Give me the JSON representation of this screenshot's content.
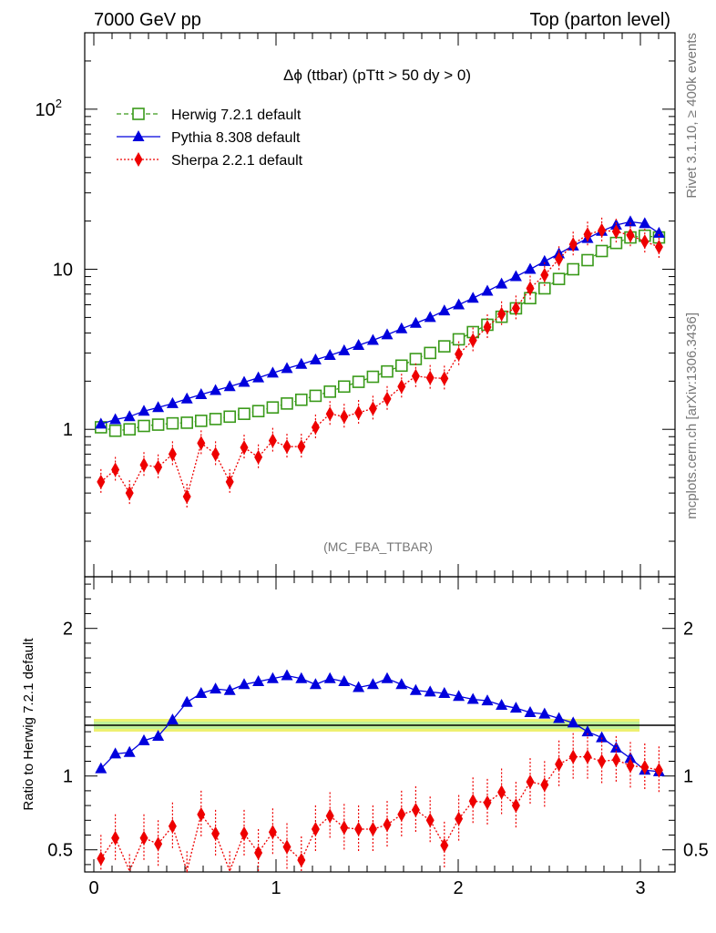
{
  "header": {
    "left": "7000 GeV pp",
    "right": "Top (parton level)"
  },
  "side_labels": {
    "rivet": "Rivet 3.1.10, ≥ 400k events",
    "mcplots": "mcplots.cern.ch [arXiv:1306.3436]"
  },
  "plot_title": "Δϕ (ttbar) (pTtt > 50 dy > 0)",
  "analysis_id": "(MC_FBA_TTBAR)",
  "ratio_ylabel": "Ratio to Herwig 7.2.1 default",
  "colors": {
    "herwig": "#3a9a1a",
    "pythia": "#0000dd",
    "sherpa": "#ee0000",
    "band": "#eef070",
    "band_inner": "#bff09a"
  },
  "chart_data": [
    {
      "type": "line",
      "panel": "main",
      "yscale": "log",
      "ylim": [
        0.12,
        300
      ],
      "xlim": [
        -0.05,
        3.19
      ],
      "xticks": [
        0,
        1,
        2,
        3
      ],
      "ytick_labels": [
        {
          "value": 1,
          "label": "1"
        },
        {
          "value": 10,
          "label": "10"
        },
        {
          "value": 100,
          "label": "10",
          "sup": "2"
        }
      ],
      "legend_position": "top-left",
      "x": [
        0.039,
        0.118,
        0.196,
        0.275,
        0.353,
        0.432,
        0.511,
        0.589,
        0.668,
        0.746,
        0.825,
        0.903,
        0.982,
        1.06,
        1.139,
        1.217,
        1.296,
        1.374,
        1.453,
        1.532,
        1.61,
        1.689,
        1.767,
        1.846,
        1.924,
        2.003,
        2.081,
        2.16,
        2.238,
        2.317,
        2.395,
        2.474,
        2.553,
        2.631,
        2.71,
        2.788,
        2.867,
        2.945,
        3.024,
        3.102
      ],
      "series": [
        {
          "name": "Herwig 7.2.1 default",
          "marker": "open-square",
          "linestyle": "dashed",
          "values": [
            1.03,
            0.98,
            1.0,
            1.05,
            1.07,
            1.09,
            1.1,
            1.13,
            1.16,
            1.2,
            1.25,
            1.3,
            1.37,
            1.45,
            1.53,
            1.62,
            1.72,
            1.85,
            1.98,
            2.13,
            2.3,
            2.5,
            2.75,
            3.0,
            3.3,
            3.65,
            4.05,
            4.5,
            5.05,
            5.7,
            6.6,
            7.6,
            8.7,
            10.0,
            11.4,
            13.0,
            14.6,
            15.8,
            16.2,
            15.8
          ]
        },
        {
          "name": "Pythia 8.308 default",
          "marker": "filled-triangle",
          "linestyle": "solid",
          "values": [
            1.08,
            1.15,
            1.2,
            1.3,
            1.37,
            1.45,
            1.55,
            1.65,
            1.75,
            1.85,
            1.97,
            2.1,
            2.25,
            2.4,
            2.55,
            2.72,
            2.9,
            3.1,
            3.35,
            3.6,
            3.9,
            4.25,
            4.6,
            5.0,
            5.5,
            6.0,
            6.6,
            7.3,
            8.1,
            9.0,
            10.0,
            11.2,
            12.5,
            14.0,
            15.6,
            17.3,
            18.9,
            19.8,
            19.3,
            16.8
          ]
        },
        {
          "name": "Sherpa 2.2.1 default",
          "marker": "filled-diamond",
          "linestyle": "dotted",
          "values": [
            0.47,
            0.56,
            0.4,
            0.6,
            0.58,
            0.7,
            0.38,
            0.82,
            0.7,
            0.47,
            0.77,
            0.67,
            0.85,
            0.78,
            0.78,
            1.03,
            1.25,
            1.2,
            1.27,
            1.35,
            1.55,
            1.85,
            2.15,
            2.1,
            2.08,
            2.95,
            3.6,
            4.35,
            5.25,
            5.7,
            7.6,
            9.2,
            11.6,
            14.3,
            16.5,
            17.5,
            17.2,
            16.3,
            14.9,
            13.8
          ]
        }
      ]
    },
    {
      "type": "line",
      "panel": "ratio",
      "ylabel": "Ratio to Herwig 7.2.1 default",
      "ylim": [
        0.35,
        2.35
      ],
      "xlim": [
        -0.05,
        3.19
      ],
      "xticks": [
        0,
        1,
        2,
        3
      ],
      "yticks": [
        0.5,
        1,
        2
      ],
      "x": [
        0.039,
        0.118,
        0.196,
        0.275,
        0.353,
        0.432,
        0.511,
        0.589,
        0.668,
        0.746,
        0.825,
        0.903,
        0.982,
        1.06,
        1.139,
        1.217,
        1.296,
        1.374,
        1.453,
        1.532,
        1.61,
        1.689,
        1.767,
        1.846,
        1.924,
        2.003,
        2.081,
        2.16,
        2.238,
        2.317,
        2.395,
        2.474,
        2.553,
        2.631,
        2.71,
        2.788,
        2.867,
        2.945,
        3.024,
        3.102
      ],
      "series": [
        {
          "name": "Pythia 8.308 default",
          "marker": "filled-triangle",
          "values": [
            1.05,
            1.15,
            1.16,
            1.24,
            1.27,
            1.38,
            1.5,
            1.56,
            1.59,
            1.58,
            1.62,
            1.64,
            1.66,
            1.68,
            1.66,
            1.62,
            1.66,
            1.64,
            1.6,
            1.62,
            1.66,
            1.62,
            1.58,
            1.57,
            1.56,
            1.54,
            1.52,
            1.51,
            1.48,
            1.46,
            1.43,
            1.42,
            1.39,
            1.36,
            1.3,
            1.26,
            1.19,
            1.12,
            1.04,
            1.03
          ]
        },
        {
          "name": "Sherpa 2.2.1 default",
          "marker": "filled-diamond",
          "values": [
            0.44,
            0.58,
            0.31,
            0.58,
            0.54,
            0.66,
            0.33,
            0.74,
            0.61,
            0.33,
            0.61,
            0.48,
            0.62,
            0.52,
            0.43,
            0.64,
            0.73,
            0.65,
            0.64,
            0.64,
            0.67,
            0.74,
            0.77,
            0.7,
            0.53,
            0.71,
            0.83,
            0.82,
            0.89,
            0.8,
            0.96,
            0.94,
            1.08,
            1.13,
            1.13,
            1.1,
            1.11,
            1.07,
            1.06,
            1.04
          ]
        }
      ]
    }
  ]
}
